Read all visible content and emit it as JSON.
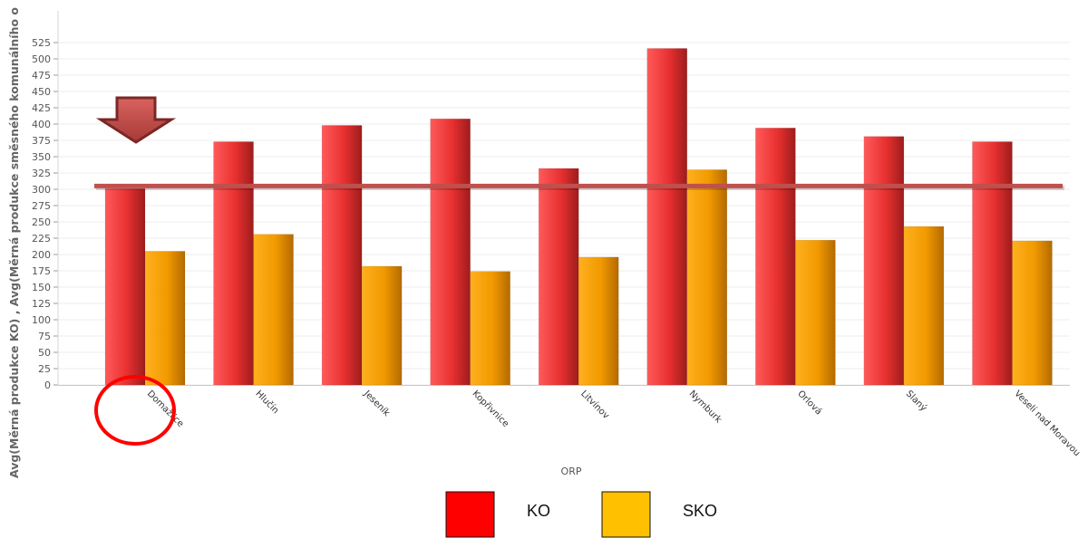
{
  "chart_data": {
    "type": "bar",
    "xlabel": "ORP",
    "ylabel": "Avg(Měrná produkce KO) , Avg(Měrná produkce směsného komunálního o",
    "ylim": [
      0,
      525
    ],
    "yticks": [
      0,
      25,
      50,
      75,
      100,
      125,
      150,
      175,
      200,
      225,
      250,
      275,
      300,
      325,
      350,
      375,
      400,
      425,
      450,
      475,
      500,
      525
    ],
    "grid": true,
    "categories": [
      "Domažlice",
      "Hlučín",
      "Jeseník",
      "Kopřivnice",
      "Litvínov",
      "Nymburk",
      "Orlová",
      "Slaný",
      "Veselí nad Moravou"
    ],
    "series": [
      {
        "name": "KO",
        "color": "#ff0000",
        "values": [
          301,
          373,
          398,
          408,
          332,
          516,
          394,
          381,
          373
        ]
      },
      {
        "name": "SKO",
        "color": "#ffc000",
        "values": [
          205,
          231,
          182,
          174,
          196,
          330,
          222,
          243,
          221
        ]
      }
    ],
    "reference_line": {
      "value": 305,
      "color": "#c0504d"
    },
    "highlight": {
      "category": "Domažlice",
      "marker": "arrow-down-icon",
      "circle_color": "#ff0000"
    },
    "legend": {
      "placement": "bottom-center"
    }
  }
}
